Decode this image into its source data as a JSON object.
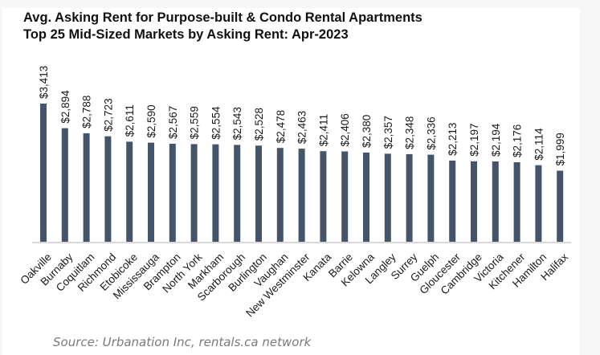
{
  "chart_data": {
    "type": "bar",
    "title": "Avg. Asking Rent for Purpose-built & Condo Rental Apartments",
    "subtitle": "Top 25 Mid-Sized Markets by Asking Rent: Apr-2023",
    "xlabel": "",
    "ylabel": "",
    "ylim": [
      500,
      3500
    ],
    "grid": false,
    "y_axis_visible": false,
    "legend": "none",
    "bar_color": "#44546a",
    "value_label_prefix": "$",
    "categories": [
      "Oakville",
      "Burnaby",
      "Coquitlam",
      "Richmond",
      "Etobicoke",
      "Mississauga",
      "Brampton",
      "North York",
      "Markham",
      "Scarborough",
      "Burlington",
      "Vaughan",
      "New Westminster",
      "Kanata",
      "Barrie",
      "Kelowna",
      "Langley",
      "Surrey",
      "Guelph",
      "Gloucester",
      "Cambridge",
      "Victoria",
      "Kitchener",
      "Hamilton",
      "Halifax"
    ],
    "values": [
      3413,
      2894,
      2788,
      2723,
      2611,
      2590,
      2567,
      2559,
      2554,
      2543,
      2528,
      2478,
      2463,
      2411,
      2406,
      2380,
      2357,
      2348,
      2336,
      2213,
      2197,
      2194,
      2176,
      2114,
      1999
    ],
    "value_labels": [
      "$3,413",
      "$2,894",
      "$2,788",
      "$2,723",
      "$2,611",
      "$2,590",
      "$2,567",
      "$2,559",
      "$2,554",
      "$2,543",
      "$2,528",
      "$2,478",
      "$2,463",
      "$2,411",
      "$2,406",
      "$2,380",
      "$2,357",
      "$2,348",
      "$2,336",
      "$2,213",
      "$2,197",
      "$2,194",
      "$2,176",
      "$2,114",
      "$1,999"
    ],
    "source": "Source: Urbanation Inc, rentals.ca network"
  }
}
